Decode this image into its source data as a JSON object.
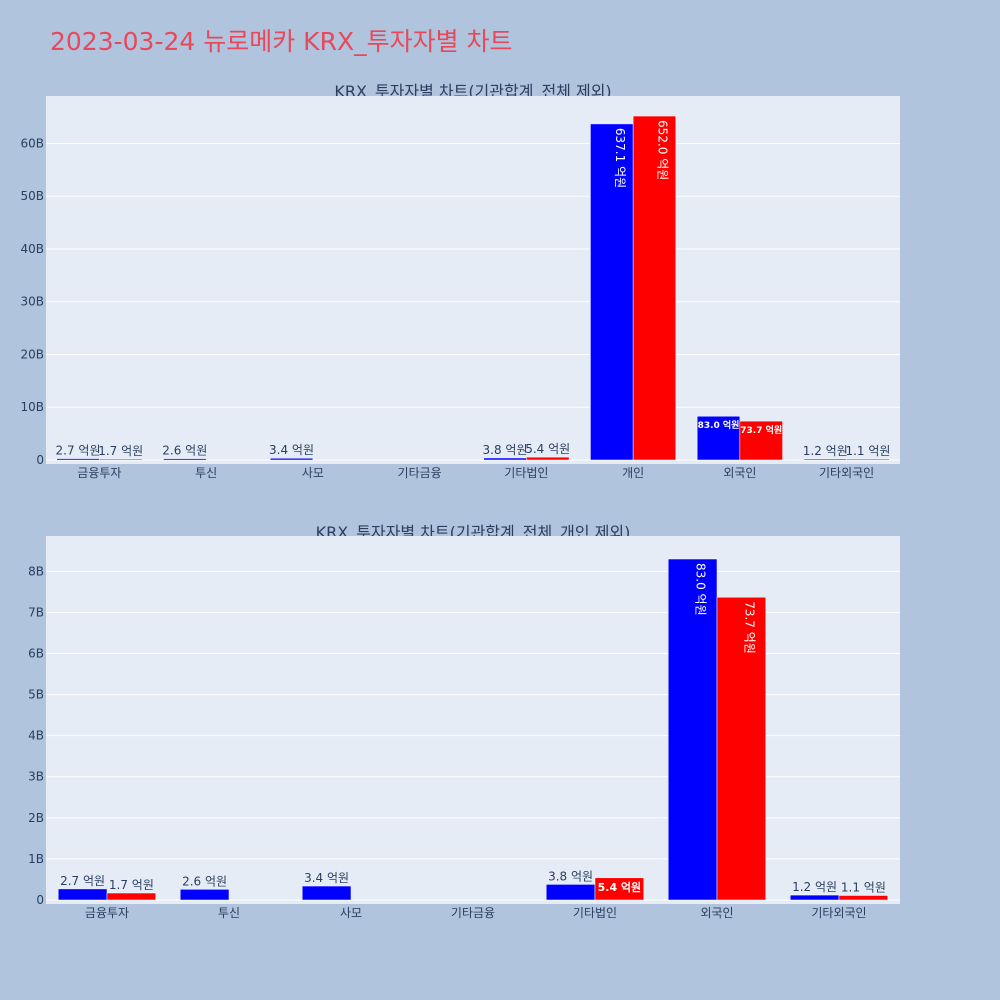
{
  "page_title": "2023-03-24 뉴로메카 KRX_투자자별 차트",
  "colors": {
    "series1": "#0000ff",
    "series2": "#ff0000",
    "plot_bg": "#e5ecf6",
    "page_bg": "#b0c4de",
    "title": "#e8485a"
  },
  "chart_data": [
    {
      "type": "bar",
      "title": "KRX_투자자별 차트(기관합계_전체 제외)",
      "categories": [
        "금융투자",
        "투신",
        "사모",
        "기타금융",
        "기타법인",
        "개인",
        "외국인",
        "기타외국인"
      ],
      "series": [
        {
          "values": [
            270000000,
            260000000,
            340000000,
            0,
            380000000,
            63710000000,
            8300000000,
            120000000
          ],
          "labels": [
            "2.7 억원",
            "2.6 억원",
            "3.4 억원",
            "",
            "3.8 억원",
            "637.1 억원",
            "83.0 억원",
            "1.2 억원"
          ]
        },
        {
          "values": [
            170000000,
            0,
            0,
            0,
            540000000,
            65200000000,
            7370000000,
            110000000
          ],
          "labels": [
            "1.7 억원",
            "",
            "",
            "",
            "5.4 억원",
            "652.0 억원",
            "73.7 억원",
            "1.1 억원"
          ]
        }
      ],
      "ylim": [
        0,
        69000000000
      ],
      "yticks": [
        0,
        10000000000,
        20000000000,
        30000000000,
        40000000000,
        50000000000,
        60000000000
      ],
      "ytick_labels": [
        "0",
        "10B",
        "20B",
        "30B",
        "40B",
        "50B",
        "60B"
      ],
      "grid": true,
      "legend": "none"
    },
    {
      "type": "bar",
      "title": "KRX_투자자별 차트(기관합계_전체_개인 제외)",
      "categories": [
        "금융투자",
        "투신",
        "사모",
        "기타금융",
        "기타법인",
        "외국인",
        "기타외국인"
      ],
      "series": [
        {
          "values": [
            270000000,
            260000000,
            340000000,
            0,
            380000000,
            8300000000,
            120000000
          ],
          "labels": [
            "2.7 억원",
            "2.6 억원",
            "3.4 억원",
            "",
            "3.8 억원",
            "83.0 억원",
            "1.2 억원"
          ]
        },
        {
          "values": [
            170000000,
            0,
            0,
            0,
            540000000,
            7370000000,
            110000000
          ],
          "labels": [
            "1.7 억원",
            "",
            "",
            "",
            "5.4 억원",
            "73.7 억원",
            "1.1 억원"
          ]
        }
      ],
      "ylim": [
        0,
        8860000000
      ],
      "yticks": [
        0,
        1000000000,
        2000000000,
        3000000000,
        4000000000,
        5000000000,
        6000000000,
        7000000000,
        8000000000
      ],
      "ytick_labels": [
        "0",
        "1B",
        "2B",
        "3B",
        "4B",
        "5B",
        "6B",
        "7B",
        "8B"
      ],
      "grid": true,
      "legend": "none"
    }
  ]
}
